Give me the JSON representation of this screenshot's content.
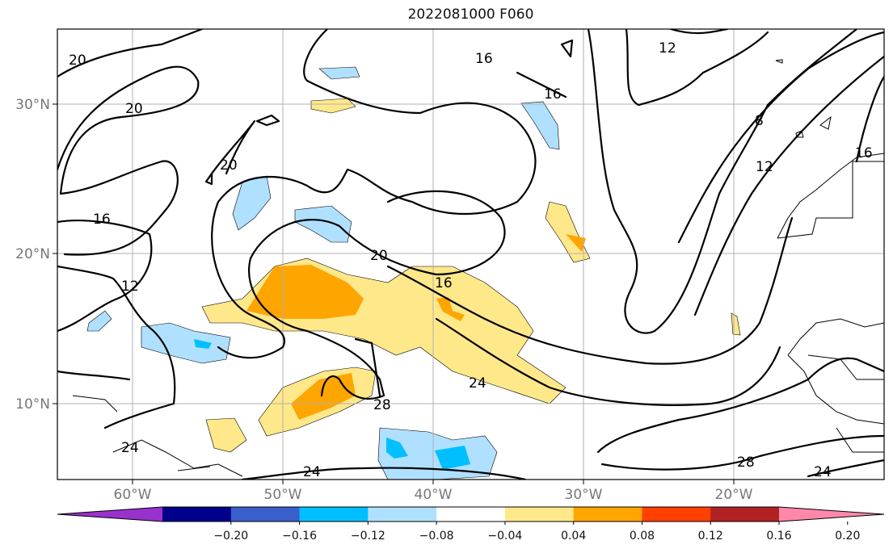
{
  "title": "2022081000 F060",
  "map": {
    "lon_labels": [
      "60°W",
      "50°W",
      "40°W",
      "30°W",
      "20°W"
    ],
    "lat_labels": [
      "30°N",
      "20°N",
      "10°N"
    ],
    "contour_levels_labeled": [
      "20",
      "20",
      "20",
      "16",
      "16",
      "16",
      "12",
      "12",
      "8",
      "12",
      "16",
      "20",
      "16",
      "24",
      "28",
      "24",
      "24",
      "28",
      "24"
    ]
  },
  "colorbar": {
    "ticks": [
      "−0.20",
      "−0.16",
      "−0.12",
      "−0.08",
      "−0.04",
      "0.04",
      "0.08",
      "0.12",
      "0.16",
      "0.20"
    ],
    "colors": [
      "#9932CC",
      "#00008B",
      "#3A5FCD",
      "#00BFFF",
      "#B0E0FF",
      "#FFFFFF",
      "#FFE88A",
      "#FFA500",
      "#FF4000",
      "#B22222",
      "#FF88AA"
    ]
  }
}
